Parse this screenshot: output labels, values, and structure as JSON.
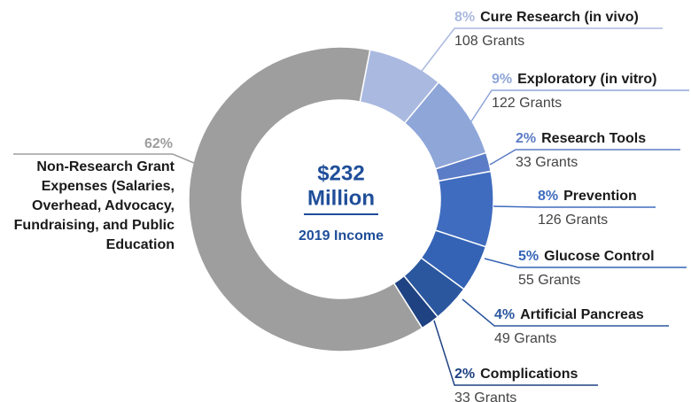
{
  "chart_data": {
    "type": "pie",
    "donut": true,
    "categories": [
      "Cure Research (in vivo)",
      "Exploratory (in vitro)",
      "Research Tools",
      "Prevention",
      "Glucose Control",
      "Artificial Pancreas",
      "Complications",
      "Non-Research Grant Expenses (Salaries, Overhead, Advocacy, Fundraising, and Public Education"
    ],
    "values": [
      8,
      9,
      2,
      8,
      5,
      4,
      2,
      62
    ],
    "value_labels": [
      "8%",
      "9%",
      "2%",
      "8%",
      "5%",
      "4%",
      "2%",
      "62%"
    ],
    "descriptions": [
      "108 Grants",
      "122 Grants",
      "33 Grants",
      "126 Grants",
      "55 Grants",
      "49 Grants",
      "33 Grants",
      null
    ],
    "colors": [
      "#aab9e0",
      "#8fa6d9",
      "#5b7cc6",
      "#3f6cbf",
      "#3463b5",
      "#2b579f",
      "#1f4282",
      "#9e9e9e"
    ],
    "center_lines": [
      "$232",
      "Million"
    ],
    "center_subtitle": "2019 Income"
  }
}
